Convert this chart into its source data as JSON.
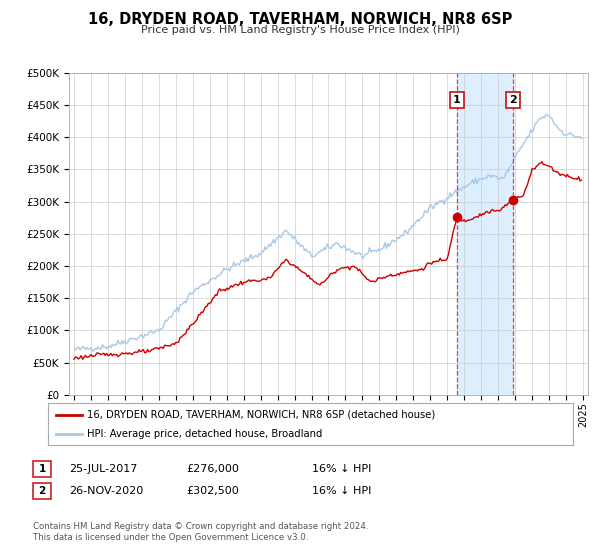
{
  "title": "16, DRYDEN ROAD, TAVERHAM, NORWICH, NR8 6SP",
  "subtitle": "Price paid vs. HM Land Registry's House Price Index (HPI)",
  "ylim": [
    0,
    500000
  ],
  "yticks": [
    0,
    50000,
    100000,
    150000,
    200000,
    250000,
    300000,
    350000,
    400000,
    450000,
    500000
  ],
  "ytick_labels": [
    "£0",
    "£50K",
    "£100K",
    "£150K",
    "£200K",
    "£250K",
    "£300K",
    "£350K",
    "£400K",
    "£450K",
    "£500K"
  ],
  "xlim_start": 1994.7,
  "xlim_end": 2025.3,
  "xticks": [
    1995,
    1996,
    1997,
    1998,
    1999,
    2000,
    2001,
    2002,
    2003,
    2004,
    2005,
    2006,
    2007,
    2008,
    2009,
    2010,
    2011,
    2012,
    2013,
    2014,
    2015,
    2016,
    2017,
    2018,
    2019,
    2020,
    2021,
    2022,
    2023,
    2024,
    2025
  ],
  "hpi_color": "#a8c8e8",
  "price_color": "#cc0000",
  "vline_color": "#dd4444",
  "shade_color": "#ddeeff",
  "marker1_x": 2017.56,
  "marker1_y": 276000,
  "marker2_x": 2020.9,
  "marker2_y": 302500,
  "legend_line1": "16, DRYDEN ROAD, TAVERHAM, NORWICH, NR8 6SP (detached house)",
  "legend_line2": "HPI: Average price, detached house, Broadland",
  "table_row1": [
    "1",
    "25-JUL-2017",
    "£276,000",
    "16% ↓ HPI"
  ],
  "table_row2": [
    "2",
    "26-NOV-2020",
    "£302,500",
    "16% ↓ HPI"
  ],
  "footnote1": "Contains HM Land Registry data © Crown copyright and database right 2024.",
  "footnote2": "This data is licensed under the Open Government Licence v3.0.",
  "background_color": "#ffffff",
  "grid_color": "#cccccc"
}
